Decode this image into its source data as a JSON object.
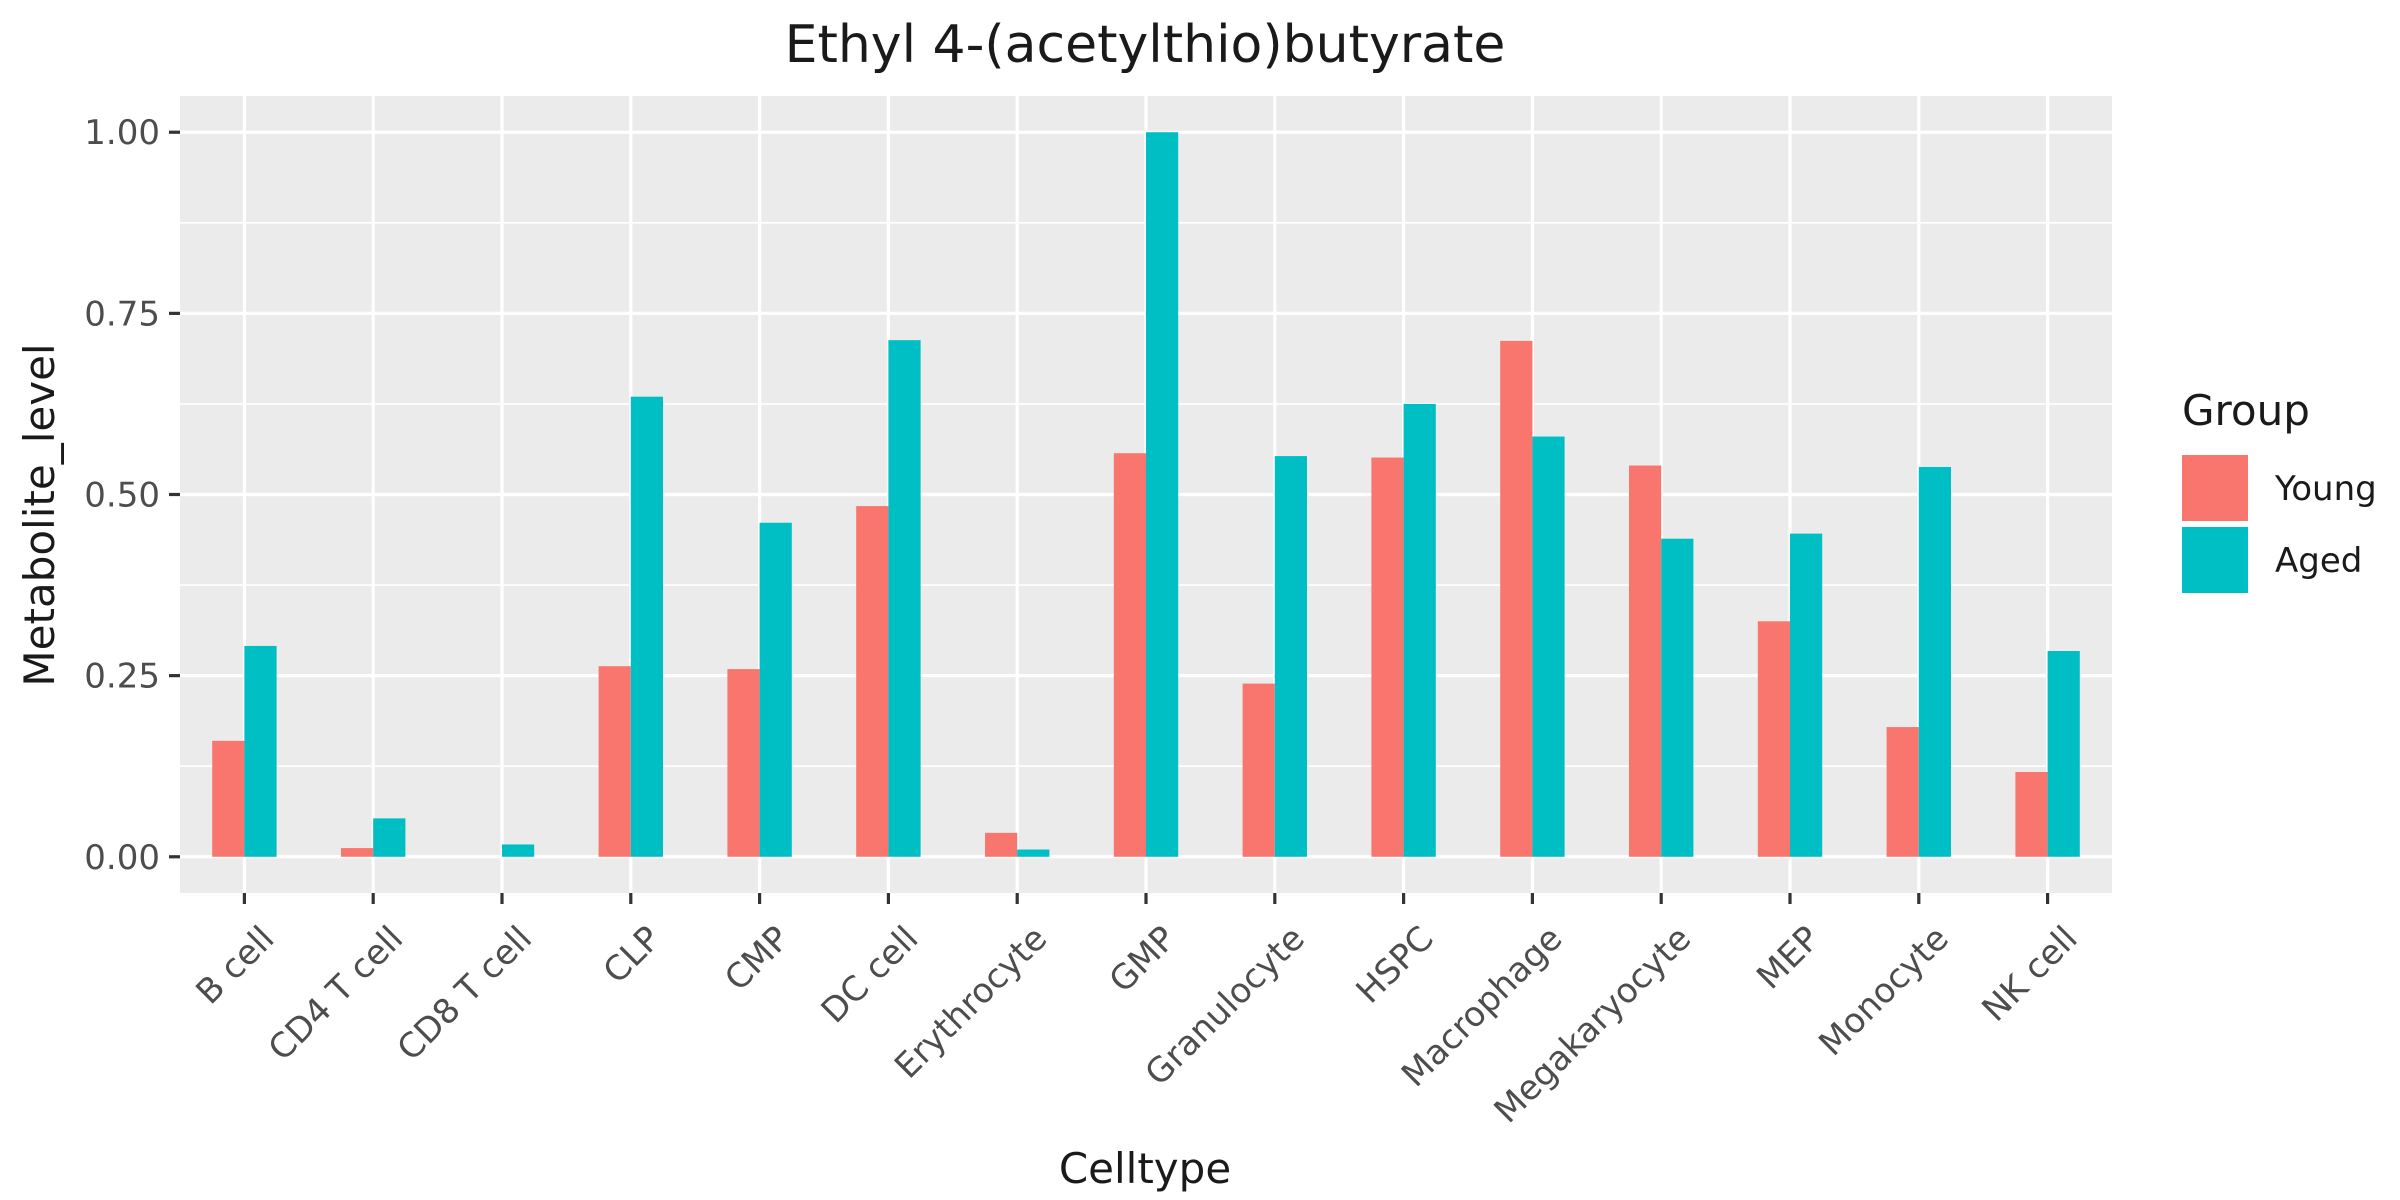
{
  "chart_data": {
    "type": "bar",
    "title": "Ethyl 4-(acetylthio)butyrate",
    "xlabel": "Celltype",
    "ylabel": "Metabolite_level",
    "categories": [
      "B cell",
      "CD4 T cell",
      "CD8 T cell",
      "CLP",
      "CMP",
      "DC cell",
      "Erythrocyte",
      "GMP",
      "Granulocyte",
      "HSPC",
      "Macrophage",
      "Megakaryocyte",
      "MEP",
      "Monocyte",
      "NK cell"
    ],
    "series": [
      {
        "name": "Young",
        "color": "#F8766D",
        "values": [
          0.16,
          0.012,
          0.0,
          0.263,
          0.259,
          0.484,
          0.033,
          0.557,
          0.239,
          0.551,
          0.712,
          0.54,
          0.325,
          0.179,
          0.117
        ]
      },
      {
        "name": "Aged",
        "color": "#00BFC4",
        "values": [
          0.291,
          0.053,
          0.017,
          0.635,
          0.461,
          0.713,
          0.01,
          1.0,
          0.553,
          0.625,
          0.58,
          0.439,
          0.446,
          0.538,
          0.284
        ]
      }
    ],
    "ylim": [
      -0.05,
      1.05
    ],
    "yticks": [
      0.0,
      0.25,
      0.5,
      0.75,
      1.0
    ],
    "ytick_labels": [
      "0.00",
      "0.25",
      "0.50",
      "0.75",
      "1.00"
    ],
    "grid": true,
    "legend": {
      "title": "Group",
      "position": "right"
    },
    "panel_color": "#EBEBEB",
    "grid_color": "#FFFFFF"
  }
}
